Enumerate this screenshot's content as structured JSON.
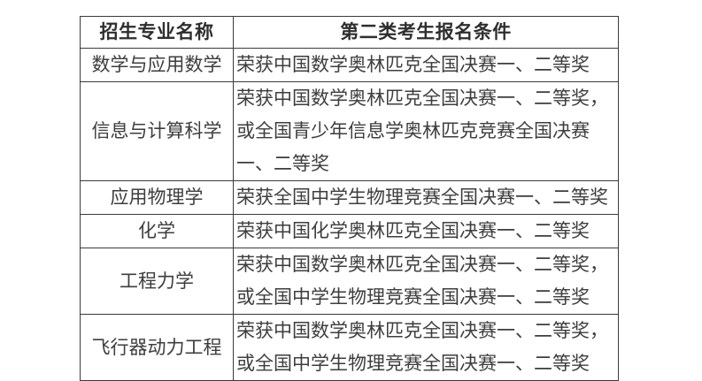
{
  "table": {
    "headers": {
      "major": "招生专业名称",
      "condition": "第二类考生报名条件"
    },
    "rows": [
      {
        "major": "数学与应用数学",
        "condition": "荣获中国数学奥林匹克全国决赛一、二等奖"
      },
      {
        "major": "信息与计算科学",
        "condition": "荣获中国数学奥林匹克全国决赛一、二等奖，或全国青少年信息学奥林匹克竞赛全国决赛一、二等奖"
      },
      {
        "major": "应用物理学",
        "condition": "荣获全国中学生物理竞赛全国决赛一、二等奖"
      },
      {
        "major": "化学",
        "condition": "荣获中国化学奥林匹克全国决赛一、二等奖"
      },
      {
        "major": "工程力学",
        "condition": "荣获中国数学奥林匹克全国决赛一、二等奖，或全国中学生物理竞赛全国决赛一、二等奖"
      },
      {
        "major": "飞行器动力工程",
        "condition": "荣获中国数学奥林匹克全国决赛一、二等奖，或全国中学生物理竞赛全国决赛一、二等奖"
      }
    ],
    "colors": {
      "border": "#3a3a3a",
      "header_text": "#2e2e2e",
      "body_text": "#3d3d3d",
      "background": "#ffffff"
    }
  }
}
